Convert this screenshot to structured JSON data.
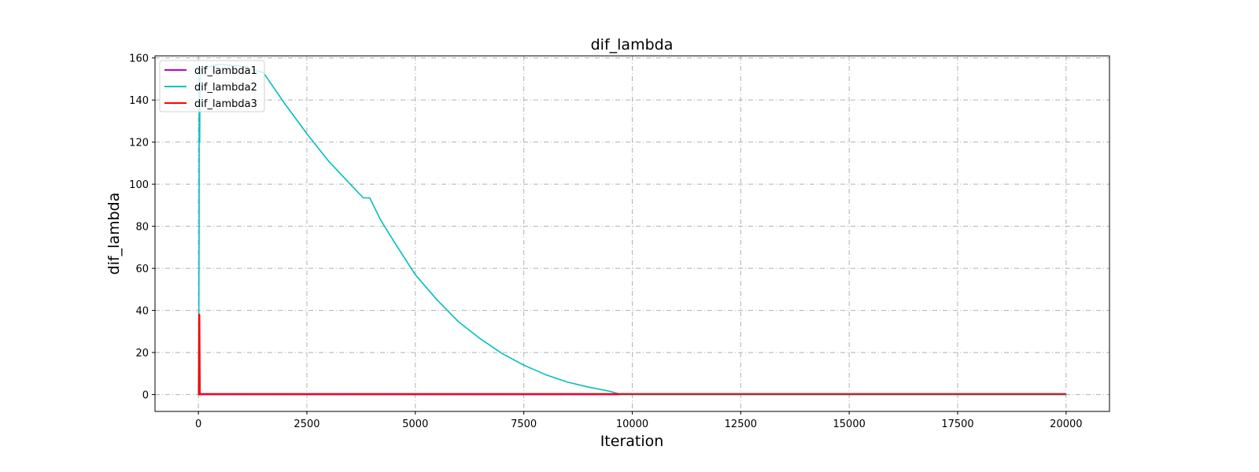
{
  "chart_data": {
    "type": "line",
    "title": "dif_lambda",
    "xlabel": "Iteration",
    "ylabel": "dif_lambda",
    "xlim": [
      -1000,
      21000
    ],
    "ylim": [
      -8,
      161
    ],
    "xticks": [
      0,
      2500,
      5000,
      7500,
      10000,
      12500,
      15000,
      17500,
      20000
    ],
    "yticks": [
      0,
      20,
      40,
      60,
      80,
      100,
      120,
      140,
      160
    ],
    "grid": true,
    "legend_position": "upper-left",
    "series": [
      {
        "name": "dif_lambda1",
        "color": "#bf00bf",
        "x": [
          0,
          20,
          30,
          40,
          20000
        ],
        "y": [
          0,
          0,
          0,
          0,
          0
        ]
      },
      {
        "name": "dif_lambda2",
        "color": "#00bfbf",
        "x": [
          0,
          10,
          15,
          20,
          25,
          30,
          35,
          40,
          500,
          1000,
          1500,
          2000,
          2500,
          3000,
          3500,
          3800,
          3950,
          4200,
          4500,
          5000,
          5500,
          6000,
          6500,
          7000,
          7500,
          8000,
          8500,
          9000,
          9500,
          9750,
          10000,
          20000
        ],
        "y": [
          0,
          40,
          73,
          150,
          140,
          120,
          148,
          155,
          157,
          156,
          153,
          138,
          124,
          111,
          100,
          93.5,
          93.5,
          83,
          73,
          57,
          45,
          34.5,
          26.5,
          19.5,
          14,
          9.5,
          6,
          3.5,
          1.5,
          0,
          0,
          0
        ]
      },
      {
        "name": "dif_lambda3",
        "color": "#ff0000",
        "x": [
          0,
          10,
          18,
          25,
          35,
          50,
          20000
        ],
        "y": [
          0,
          0,
          38,
          38,
          0,
          0.3,
          0.3
        ]
      }
    ]
  }
}
